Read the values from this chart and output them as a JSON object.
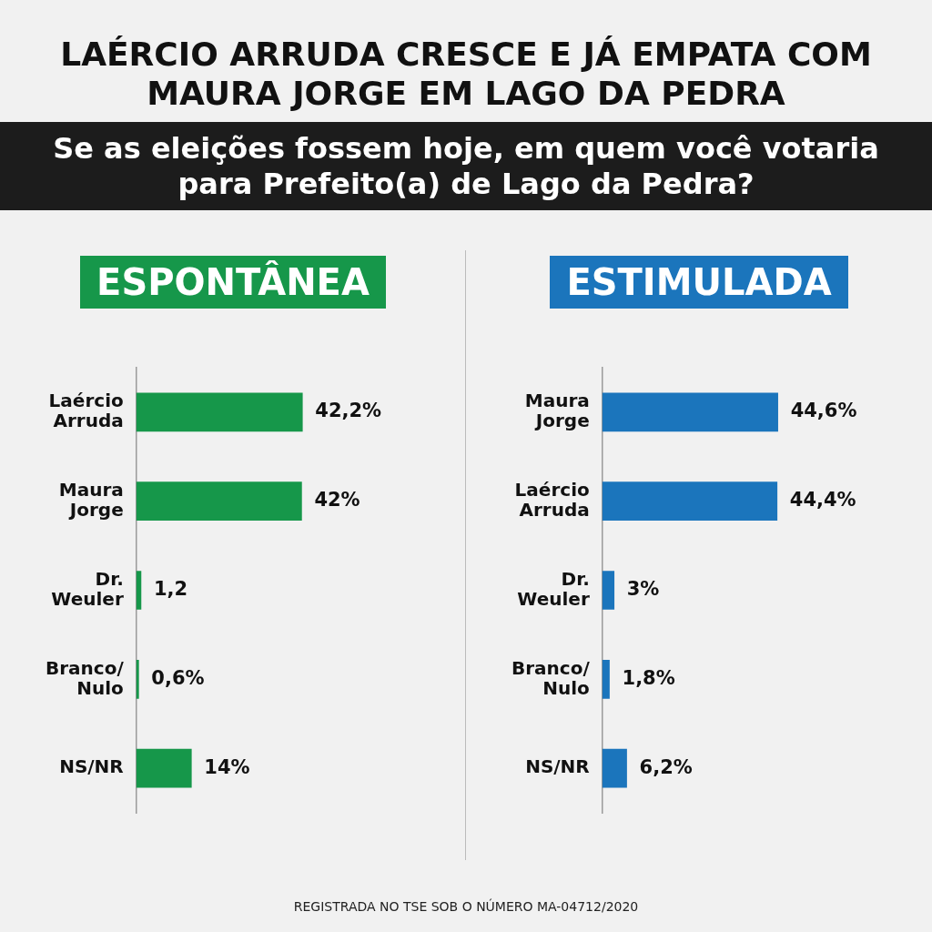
{
  "chart_data": [
    {
      "type": "bar",
      "orientation": "horizontal",
      "title": "ESPONTÂNEA",
      "annotations": [
        "LAÉRCIO ARRUDA CRESCE E JÁ EMPATA COM MAURA JORGE EM LAGO DA PEDRA",
        "Se as eleições fossem hoje, em quem você votaria para Prefeito(a) de Lago da Pedra?"
      ],
      "categories": [
        "Laércio Arruda",
        "Maura Jorge",
        "Dr. Weuler",
        "Branco/Nulo",
        "NS/NR"
      ],
      "series": [
        {
          "color": "#16974a",
          "values": [
            42.2,
            42,
            1.2,
            0.6,
            14
          ],
          "value_labels": [
            "42,2%",
            "42%",
            "1,2",
            "0,6%",
            "14%"
          ]
        }
      ],
      "tick_labels": "y"
    },
    {
      "type": "bar",
      "orientation": "horizontal",
      "title": "ESTIMULADA",
      "annotations": [
        "REGISTRADA NO TSE SOB O NÚMERO MA-04712/2020"
      ],
      "categories": [
        "Maura Jorge",
        "Laércio Arruda",
        "Dr. Weuler",
        "Branco/Nulo",
        "NS/NR"
      ],
      "series": [
        {
          "color": "#1b75bc",
          "values": [
            44.6,
            44.4,
            3,
            1.8,
            6.2
          ],
          "value_labels": [
            "44,6%",
            "44,4%",
            "3%",
            "1,8%",
            "6,2%"
          ]
        }
      ],
      "tick_labels": "y"
    }
  ]
}
